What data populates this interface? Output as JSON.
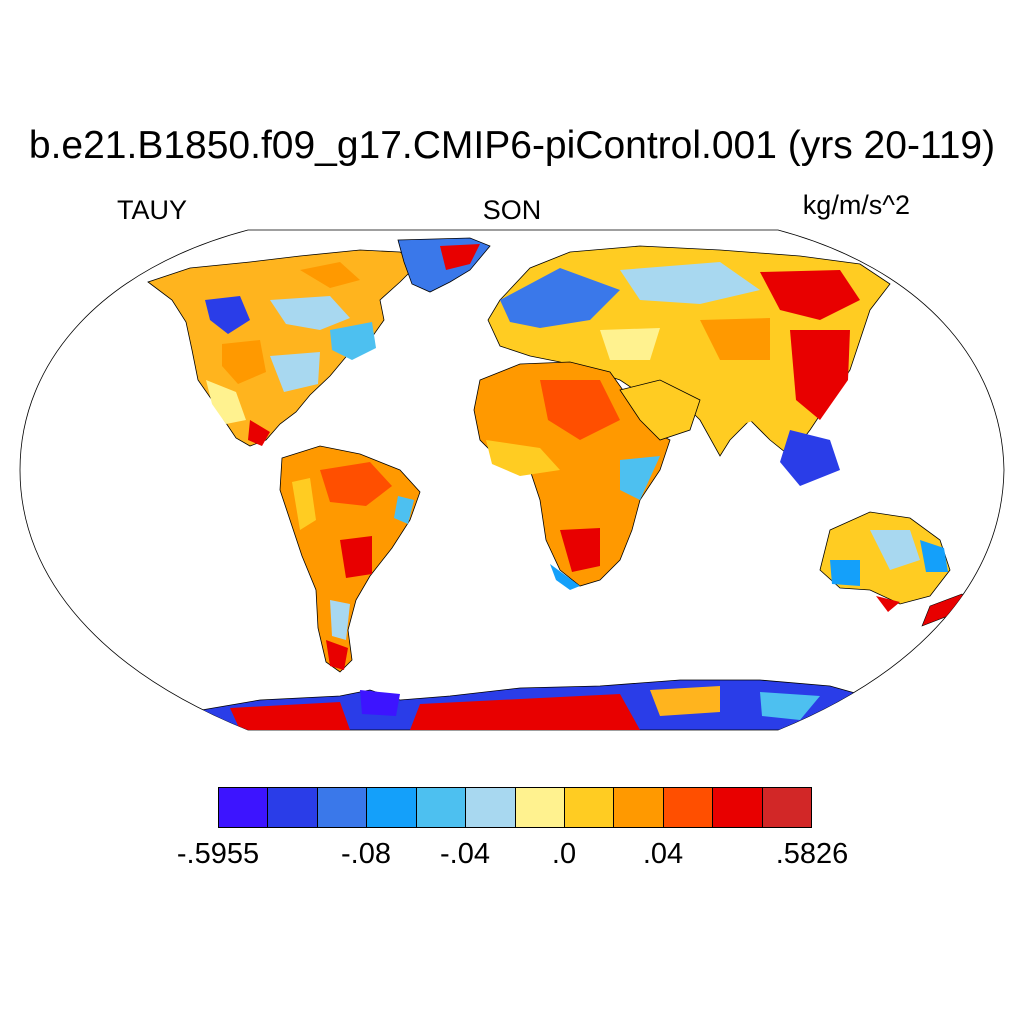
{
  "title": "b.e21.B1850.f09_g17.CMIP6-piControl.001 (yrs 20-119)",
  "variable": "TAUY",
  "season": "SON",
  "units": "kg/m/s^2",
  "colorbar": {
    "colors": [
      "#3d14ff",
      "#2a3de8",
      "#3a78ea",
      "#14a0fa",
      "#4dc0f0",
      "#a8d8f0",
      "#fff28f",
      "#ffcc22",
      "#ff9900",
      "#ff4f00",
      "#e80000",
      "#d22727"
    ],
    "labels": [
      "-.5955",
      "-.08",
      "-.04",
      ".0",
      ".04",
      ".5826"
    ]
  },
  "map_style": {
    "ocean": "#ffffff",
    "coastline": "#000000"
  }
}
